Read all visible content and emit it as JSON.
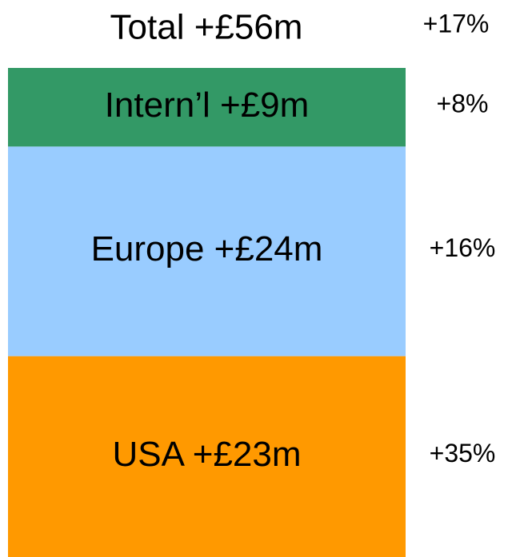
{
  "chart_data": {
    "type": "bar",
    "stacked": true,
    "total_label": "Total +£56m",
    "total_change": "+17%",
    "segments": [
      {
        "label": "USA +£23m",
        "value": 23,
        "change": "+35%",
        "color": "#ff9900"
      },
      {
        "label": "Europe +£24m",
        "value": 24,
        "change": "+16%",
        "color": "#99ccff"
      },
      {
        "label": "Intern’l +£9m",
        "value": 9,
        "change": "+8%",
        "color": "#339966"
      }
    ]
  }
}
